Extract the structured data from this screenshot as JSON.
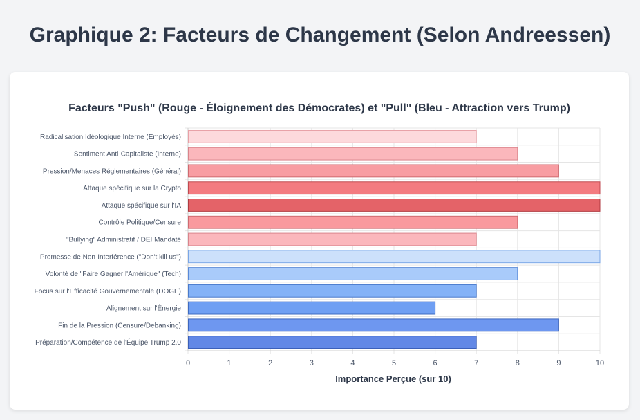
{
  "page": {
    "title": "Graphique 2: Facteurs de Changement (Selon Andreessen)"
  },
  "chart_data": {
    "type": "bar",
    "orientation": "horizontal",
    "title": "Facteurs \"Push\" (Rouge - Éloignement des Démocrates) et \"Pull\" (Bleu - Attraction vers Trump)",
    "xlabel": "Importance Perçue (sur 10)",
    "ylabel": "",
    "xlim": [
      0,
      10
    ],
    "xticks": [
      "0",
      "1",
      "2",
      "3",
      "4",
      "5",
      "6",
      "7",
      "8",
      "9",
      "10"
    ],
    "grid": true,
    "categories": [
      "Radicalisation Idéologique Interne (Employés)",
      "Sentiment Anti-Capitaliste (Interne)",
      "Pression/Menaces Réglementaires (Général)",
      "Attaque spécifique sur la Crypto",
      "Attaque spécifique sur l'IA",
      "Contrôle Politique/Censure",
      "\"Bullying\" Administratif / DEI Mandaté",
      "Promesse de Non-Interférence (\"Don't kill us\")",
      "Volonté de \"Faire Gagner l'Amérique\" (Tech)",
      "Focus sur l'Efficacité Gouvernementale (DOGE)",
      "Alignement sur l'Énergie",
      "Fin de la Pression (Censure/Debanking)",
      "Préparation/Compétence de l'Équipe Trump 2.0"
    ],
    "values": [
      7,
      8,
      9,
      10,
      10,
      8,
      7,
      10,
      8,
      7,
      6,
      9,
      7
    ],
    "colors": [
      "#fdd9dc",
      "#fbb7bc",
      "#f89da2",
      "#f37b80",
      "#e46368",
      "#f9999e",
      "#fbb7bc",
      "#cce0fb",
      "#a9cbfa",
      "#84b2f7",
      "#6f9ff3",
      "#6e97f0",
      "#6288e6"
    ],
    "borders": [
      "#e8a0a6",
      "#d9848b",
      "#cf6a70",
      "#c04a50",
      "#b03a40",
      "#cf6a70",
      "#d9848b",
      "#7aa6e6",
      "#5a8ad8",
      "#4a7acb",
      "#3f6cc2",
      "#3e67bf",
      "#3b5fb8"
    ]
  }
}
